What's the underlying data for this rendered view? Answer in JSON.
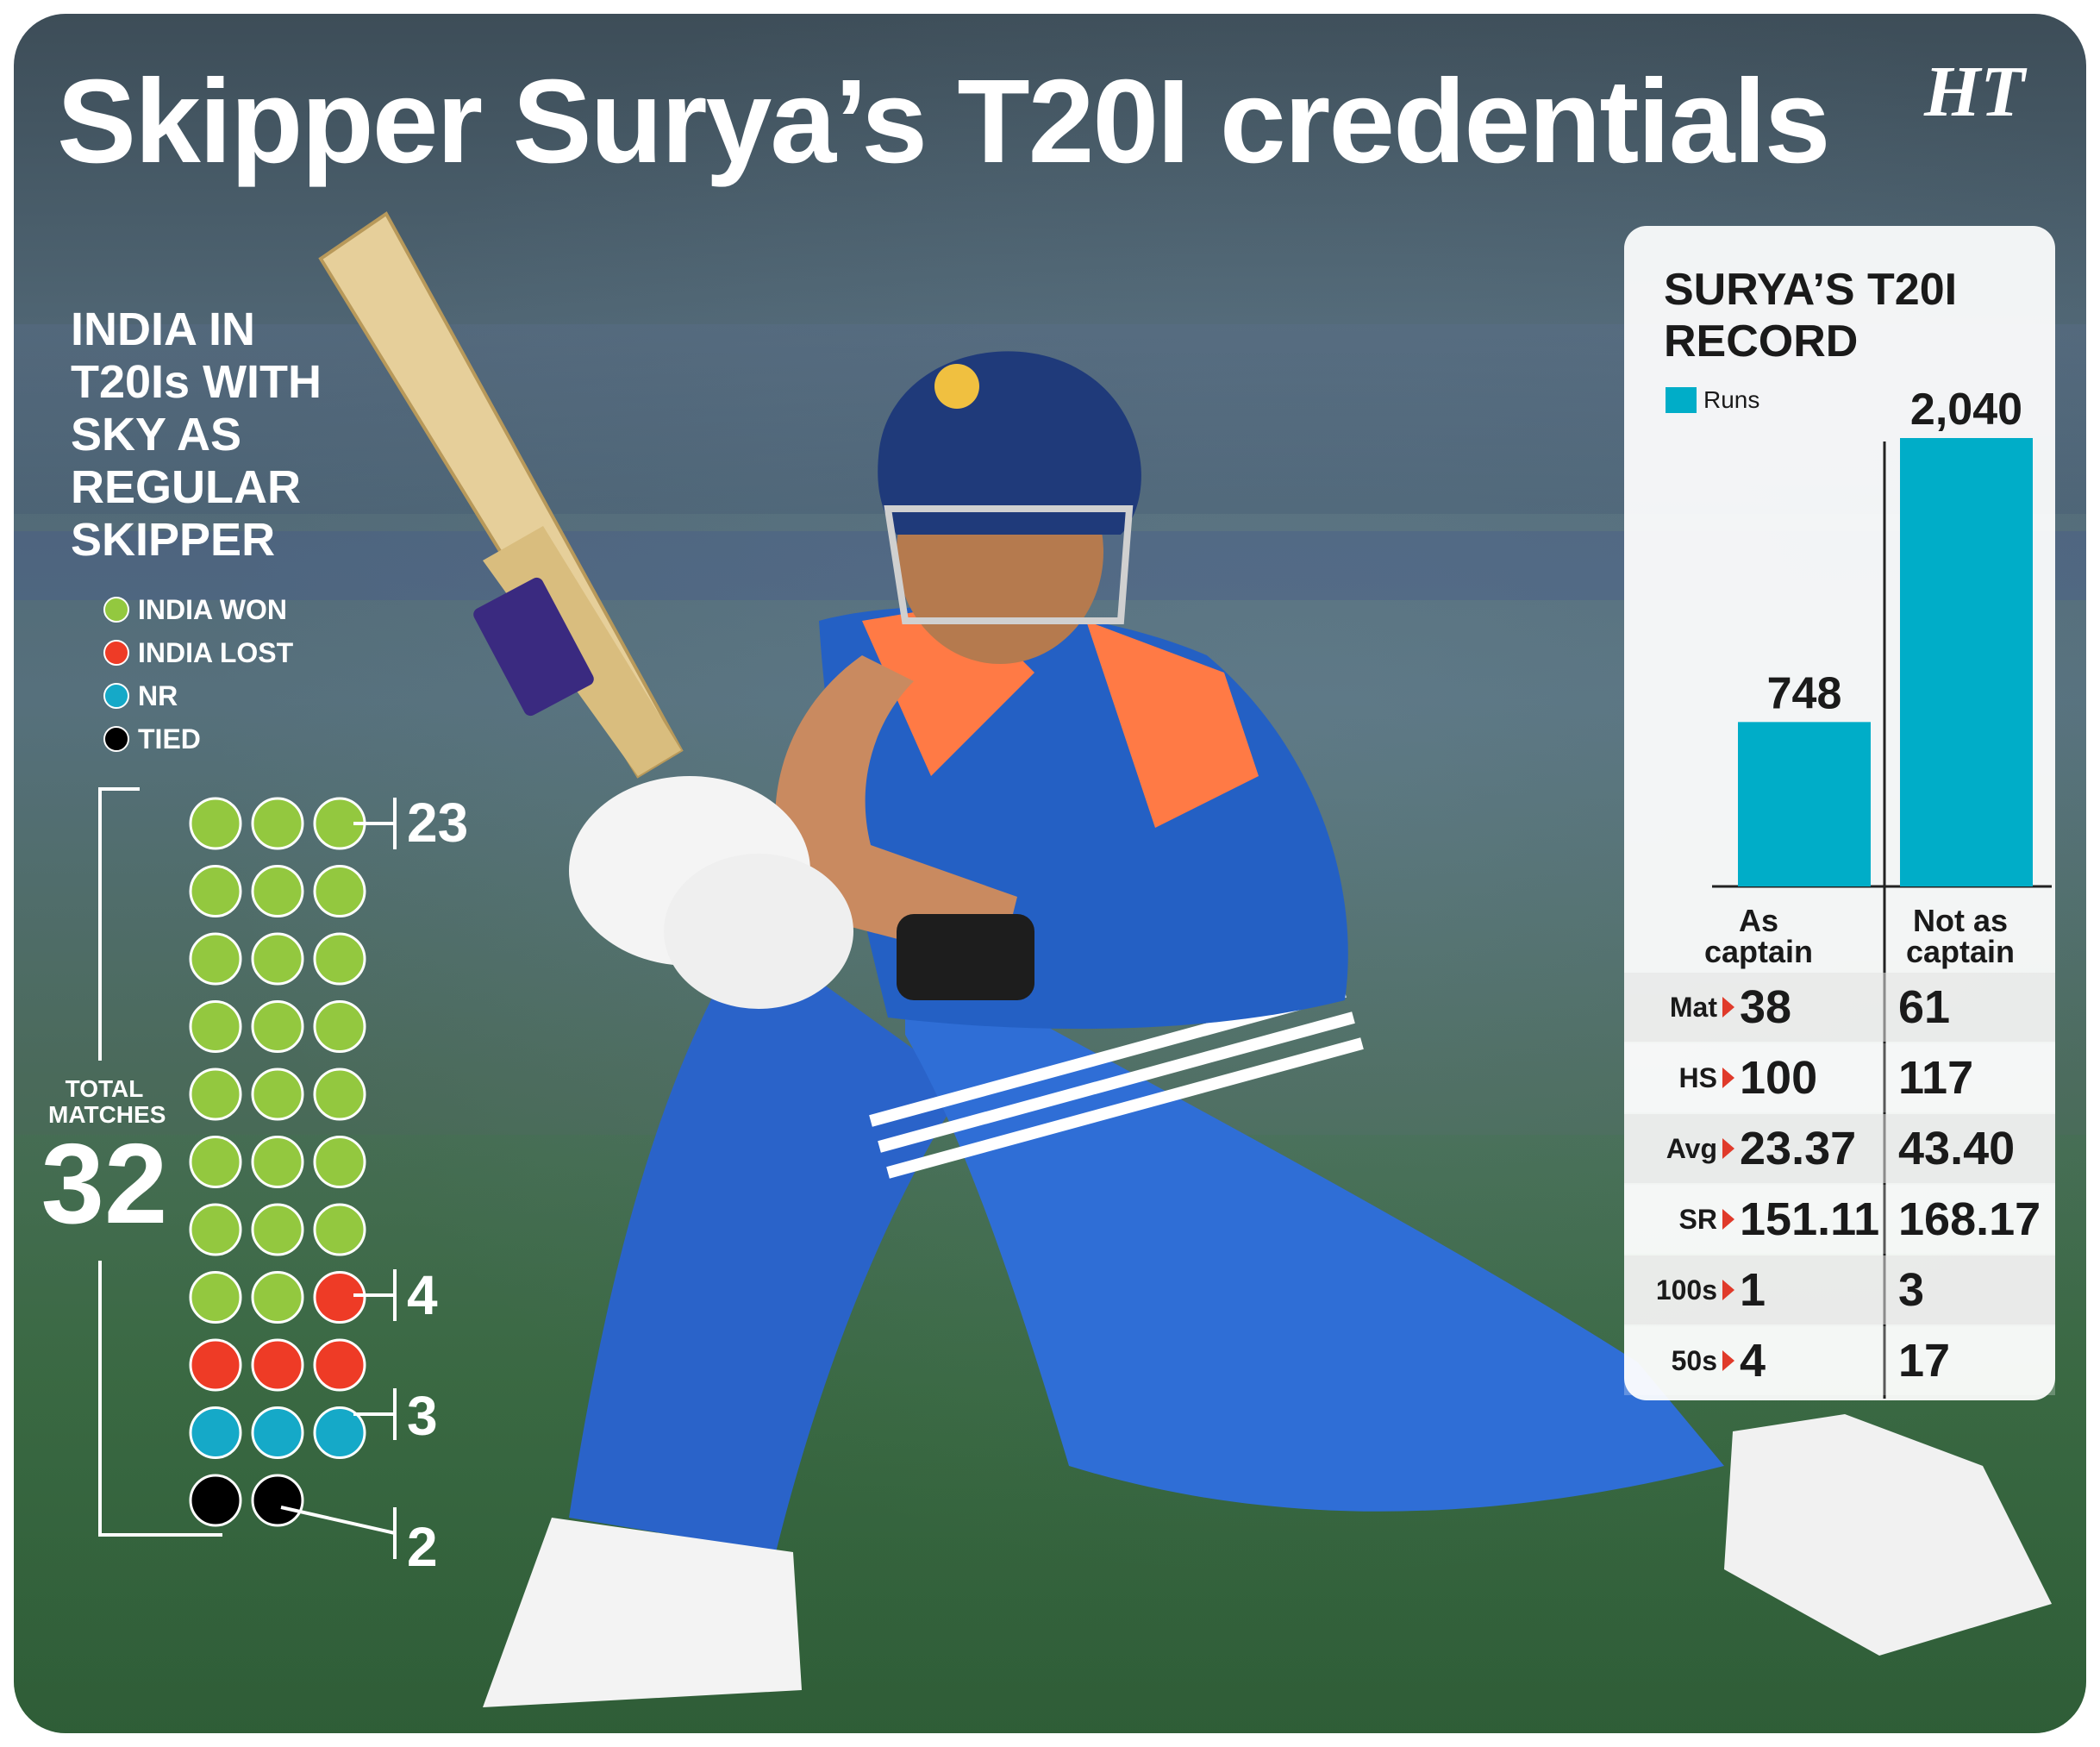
{
  "title": "Skipper Surya’s T20I credentials",
  "logo": "HT",
  "colors": {
    "won": "#93c83f",
    "lost": "#ee3b26",
    "nr": "#15a9c8",
    "tied": "#000000",
    "runs_bar": "#00adc8",
    "arrow": "#e03a2a"
  },
  "left_panel": {
    "heading_lines": [
      "INDIA IN",
      "T20Is WITH",
      "SKY AS",
      "REGULAR",
      "SKIPPER"
    ],
    "legend": [
      {
        "label": "INDIA WON",
        "color_key": "won"
      },
      {
        "label": "INDIA LOST",
        "color_key": "lost"
      },
      {
        "label": "NR",
        "color_key": "nr"
      },
      {
        "label": "TIED",
        "color_key": "tied"
      }
    ],
    "total_label_lines": [
      "TOTAL",
      "MATCHES"
    ],
    "total_value": "32",
    "counts": {
      "won": "23",
      "lost": "4",
      "nr": "3",
      "tied": "2"
    }
  },
  "right_panel": {
    "title_lines": [
      "SURYA’S T20I",
      "RECORD"
    ],
    "runs_legend": "Runs",
    "rows": [
      {
        "stat": "Mat",
        "captain": "38",
        "not_captain": "61"
      },
      {
        "stat": "HS",
        "captain": "100",
        "not_captain": "117"
      },
      {
        "stat": "Avg",
        "captain": "23.37",
        "not_captain": "43.40"
      },
      {
        "stat": "SR",
        "captain": "151.11",
        "not_captain": "168.17"
      },
      {
        "stat": "100s",
        "captain": "1",
        "not_captain": "3"
      },
      {
        "stat": "50s",
        "captain": "4",
        "not_captain": "17"
      }
    ]
  },
  "chart_data": [
    {
      "type": "bar",
      "title": "SURYA’S T20I RECORD",
      "categories": [
        "As captain",
        "Not as captain"
      ],
      "series": [
        {
          "name": "Runs",
          "values": [
            748,
            2040
          ]
        }
      ],
      "value_labels": [
        "748",
        "2,040"
      ],
      "ylim": [
        0,
        2040
      ]
    },
    {
      "type": "dot-matrix",
      "title": "INDIA IN T20Is WITH SKY AS REGULAR SKIPPER",
      "categories": [
        "INDIA WON",
        "INDIA LOST",
        "NR",
        "TIED"
      ],
      "values": [
        23,
        4,
        3,
        2
      ],
      "total": 32
    }
  ],
  "icons": [
    "cricket-batter-photo",
    "triangle-arrow-icon"
  ]
}
